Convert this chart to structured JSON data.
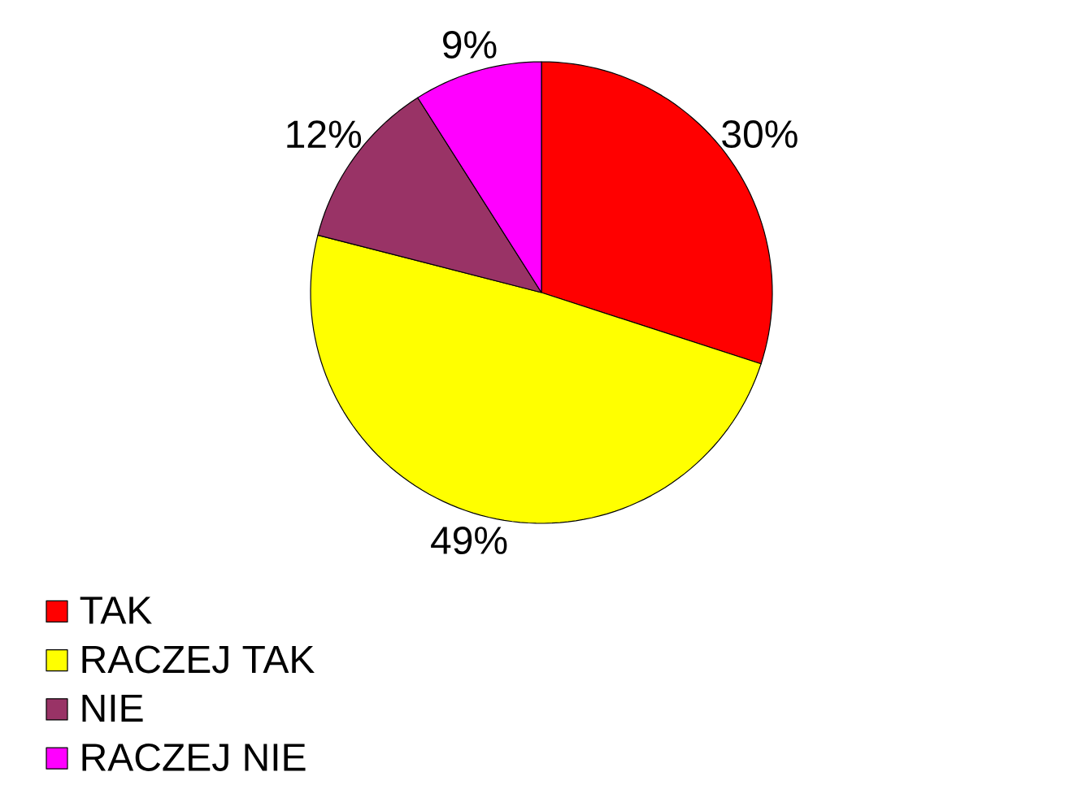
{
  "chart_data": {
    "type": "pie",
    "categories": [
      "TAK",
      "RACZEJ TAK",
      "NIE",
      "RACZEJ NIE"
    ],
    "values": [
      30,
      49,
      12,
      9
    ],
    "colors": [
      "#ff0000",
      "#ffff00",
      "#993366",
      "#ff00ff"
    ],
    "value_labels": [
      "30%",
      "49%",
      "12%",
      "9%"
    ],
    "legend": "bottom left"
  }
}
